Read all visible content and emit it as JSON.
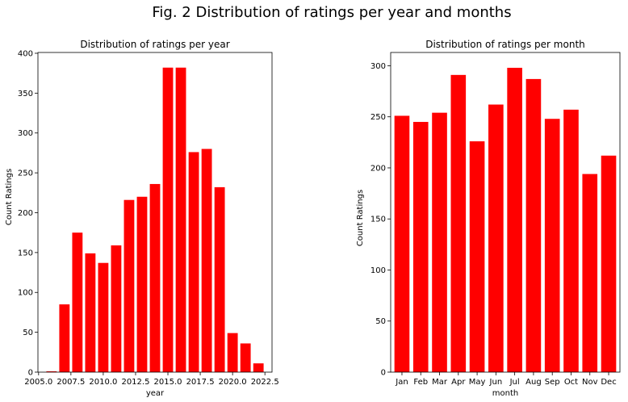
{
  "figure": {
    "title": "Fig. 2 Distribution of ratings per year and months"
  },
  "chart_data": [
    {
      "type": "bar",
      "title": "Distribution of ratings per year",
      "xlabel": "year",
      "ylabel": "Count Ratings",
      "x": [
        2006,
        2007,
        2008,
        2009,
        2010,
        2011,
        2012,
        2013,
        2014,
        2015,
        2016,
        2017,
        2018,
        2019,
        2020,
        2021,
        2022
      ],
      "values": [
        1,
        85,
        175,
        149,
        137,
        159,
        216,
        220,
        236,
        382,
        382,
        276,
        280,
        232,
        49,
        36,
        11
      ],
      "xlim": [
        2004.95,
        2023.05
      ],
      "ylim": [
        0,
        401
      ],
      "xticks": [
        2005.0,
        2007.5,
        2010.0,
        2012.5,
        2015.0,
        2017.5,
        2020.0,
        2022.5
      ],
      "xtick_labels": [
        "2005.0",
        "2007.5",
        "2010.0",
        "2012.5",
        "2015.0",
        "2017.5",
        "2020.0",
        "2022.5"
      ],
      "yticks": [
        0,
        50,
        100,
        150,
        200,
        250,
        300,
        350,
        400
      ],
      "grid": false,
      "color": "#ff0000"
    },
    {
      "type": "bar",
      "title": "Distribution of ratings per month",
      "xlabel": "month",
      "ylabel": "Count Ratings",
      "categories": [
        "Jan",
        "Feb",
        "Mar",
        "Apr",
        "May",
        "Jun",
        "Jul",
        "Aug",
        "Sep",
        "Oct",
        "Nov",
        "Dec"
      ],
      "values": [
        251,
        245,
        254,
        291,
        226,
        262,
        298,
        287,
        248,
        257,
        194,
        212
      ],
      "ylim": [
        0,
        313
      ],
      "yticks": [
        0,
        50,
        100,
        150,
        200,
        250,
        300
      ],
      "grid": false,
      "color": "#ff0000"
    }
  ]
}
